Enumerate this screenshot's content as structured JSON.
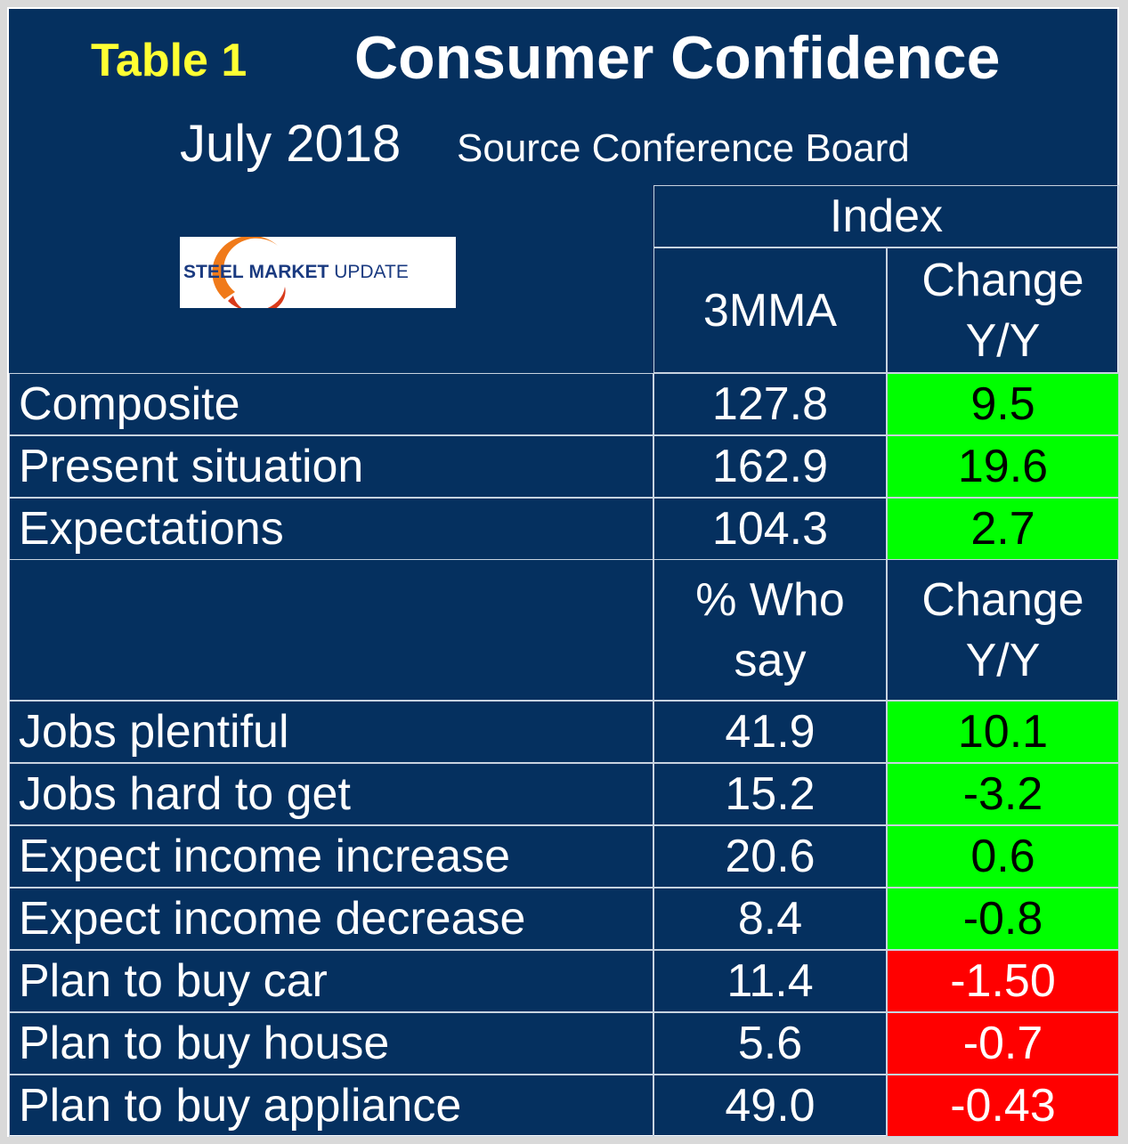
{
  "header": {
    "table_label": "Table 1",
    "title": "Consumer Confidence",
    "date": "July 2018",
    "source": "Source Conference Board",
    "logo_text": [
      "STEEL",
      "MARKET",
      "UPDATE"
    ]
  },
  "table": {
    "index_header": "Index",
    "col1_header": "3MMA",
    "col2_header": "Change Y/Y",
    "index_rows": [
      {
        "label": "Composite",
        "value": "127.8",
        "change": "9.5",
        "status": "green"
      },
      {
        "label": "Present situation",
        "value": "162.9",
        "change": "19.6",
        "status": "green"
      },
      {
        "label": "Expectations",
        "value": "104.3",
        "change": "2.7",
        "status": "green"
      }
    ],
    "col1_header_2": "% Who say",
    "col2_header_2": "Change Y/Y",
    "survey_rows": [
      {
        "label": "Jobs plentiful",
        "value": "41.9",
        "change": "10.1",
        "status": "green"
      },
      {
        "label": "Jobs hard to get",
        "value": "15.2",
        "change": "-3.2",
        "status": "green"
      },
      {
        "label": "Expect income increase",
        "value": "20.6",
        "change": "0.6",
        "status": "green"
      },
      {
        "label": "Expect income decrease",
        "value": "8.4",
        "change": "-0.8",
        "status": "green"
      },
      {
        "label": "Plan to buy car",
        "value": "11.4",
        "change": "-1.50",
        "status": "red"
      },
      {
        "label": "Plan to buy house",
        "value": "5.6",
        "change": "-0.7",
        "status": "red"
      },
      {
        "label": "Plan to buy appliance",
        "value": "49.0",
        "change": "-0.43",
        "status": "red"
      }
    ]
  },
  "chart_data": {
    "type": "table",
    "title": "Consumer Confidence",
    "columns": [
      "",
      "3MMA",
      "Change Y/Y"
    ],
    "rows": [
      [
        "Composite",
        127.8,
        9.5
      ],
      [
        "Present situation",
        162.9,
        19.6
      ],
      [
        "Expectations",
        104.3,
        2.7
      ],
      [
        "Jobs plentiful",
        41.9,
        10.1
      ],
      [
        "Jobs hard to get",
        15.2,
        -3.2
      ],
      [
        "Expect income increase",
        20.6,
        0.6
      ],
      [
        "Expect income decrease",
        8.4,
        -0.8
      ],
      [
        "Plan to buy car",
        11.4,
        -1.5
      ],
      [
        "Plan to buy house",
        5.6,
        -0.7
      ],
      [
        "Plan to buy appliance",
        49.0,
        -0.43
      ]
    ]
  },
  "colors": {
    "background": "#05305f",
    "positive": "#00ff00",
    "negative": "#ff0000",
    "table_label": "#ffff33"
  }
}
